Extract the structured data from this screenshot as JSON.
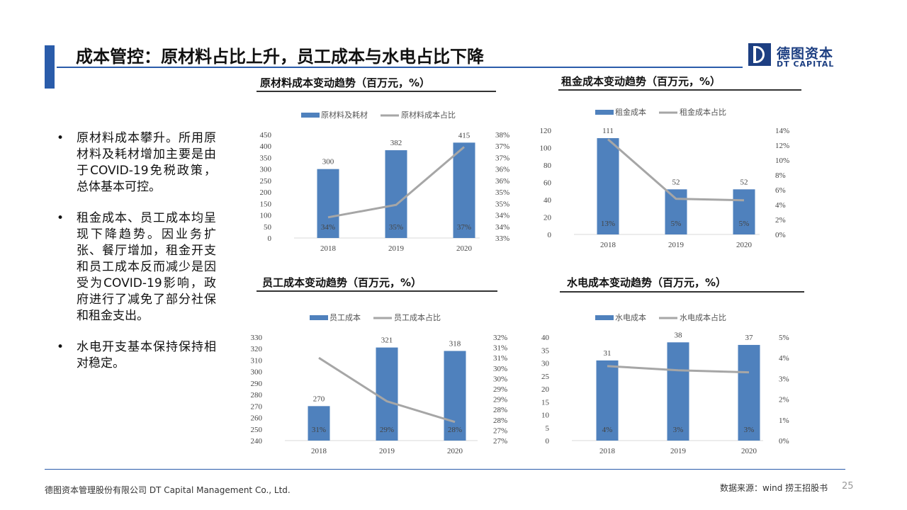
{
  "header": {
    "title": "成本管控：原材料占比上升，员工成本与水电占比下降"
  },
  "logo": {
    "name": "德图资本",
    "sub": "DT CAPITAL"
  },
  "bullets": [
    "原材料成本攀升。所用原材料及耗材增加主要是由于COVID-19免税政策，总体基本可控。",
    "租金成本、员工成本均呈现下降趋势。因业务扩张、餐厅增加，租金开支和员工成本反而减少是因受为COVID-19影响，政府进行了减免了部分社保和租金支出。",
    "水电开支基本保持保持相对稳定。"
  ],
  "footer": {
    "company": "德图资本管理股份有限公司  DT Capital Management Co., Ltd.",
    "source": "数据来源：wind  捞王招股书",
    "page": "25"
  },
  "colors": {
    "bar": "#4f81bd",
    "line": "#a6a6a6",
    "accent": "#2a5caa"
  },
  "chart_data": [
    {
      "type": "bar",
      "title": "原材料成本变动趋势（百万元，%）",
      "categories": [
        "2018",
        "2019",
        "2020"
      ],
      "series": [
        {
          "name": "原材料及耗材",
          "kind": "bar",
          "axis": "left",
          "values": [
            300,
            382,
            415
          ],
          "labels": [
            "300",
            "382",
            "415"
          ]
        },
        {
          "name": "原材料成本占比",
          "kind": "line",
          "axis": "right",
          "values": [
            34.0,
            34.6,
            37.4
          ],
          "labels": [
            "34%",
            "35%",
            "37%"
          ]
        }
      ],
      "left_axis": {
        "min": 0,
        "max": 450,
        "ticks": [
          "0",
          "50",
          "100",
          "150",
          "200",
          "250",
          "300",
          "350",
          "400",
          "450"
        ]
      },
      "right_axis": {
        "min": 33,
        "max": 38,
        "ticks": [
          "33%",
          "34%",
          "34%",
          "35%",
          "35%",
          "36%",
          "36%",
          "37%",
          "37%",
          "38%"
        ]
      },
      "legend": "top"
    },
    {
      "type": "bar",
      "title": "租金成本变动趋势（百万元，%）",
      "categories": [
        "2018",
        "2019",
        "2020"
      ],
      "series": [
        {
          "name": "租金成本",
          "kind": "bar",
          "axis": "left",
          "values": [
            111,
            52,
            52
          ],
          "labels": [
            "111",
            "52",
            "52"
          ]
        },
        {
          "name": "租金成本占比",
          "kind": "line",
          "axis": "right",
          "values": [
            12.8,
            4.8,
            4.6
          ],
          "labels": [
            "13%",
            "5%",
            "5%"
          ]
        }
      ],
      "left_axis": {
        "min": 0,
        "max": 120,
        "ticks": [
          "0",
          "20",
          "40",
          "60",
          "80",
          "100",
          "120"
        ]
      },
      "right_axis": {
        "min": 0,
        "max": 14,
        "ticks": [
          "0%",
          "2%",
          "4%",
          "6%",
          "8%",
          "10%",
          "12%",
          "14%"
        ]
      },
      "legend": "top"
    },
    {
      "type": "bar",
      "title": "员工成本变动趋势（百万元，%）",
      "categories": [
        "2018",
        "2019",
        "2020"
      ],
      "series": [
        {
          "name": "员工成本",
          "kind": "bar",
          "axis": "left",
          "values": [
            270,
            321,
            318
          ],
          "labels": [
            "270",
            "321",
            "318"
          ]
        },
        {
          "name": "员工成本占比",
          "kind": "line",
          "axis": "right",
          "values": [
            31.0,
            28.9,
            27.9
          ],
          "labels": [
            "31%",
            "29%",
            "28%"
          ]
        }
      ],
      "left_axis": {
        "min": 240,
        "max": 330,
        "ticks": [
          "240",
          "250",
          "260",
          "270",
          "280",
          "290",
          "300",
          "310",
          "320",
          "330"
        ]
      },
      "right_axis": {
        "min": 27,
        "max": 32,
        "ticks": [
          "27%",
          "27%",
          "28%",
          "28%",
          "29%",
          "29%",
          "30%",
          "30%",
          "31%",
          "31%",
          "32%"
        ]
      },
      "legend": "top"
    },
    {
      "type": "bar",
      "title": "水电成本变动趋势（百万元，%）",
      "categories": [
        "2018",
        "2019",
        "2020"
      ],
      "series": [
        {
          "name": "水电成本",
          "kind": "bar",
          "axis": "left",
          "values": [
            31,
            38,
            37
          ],
          "labels": [
            "31",
            "38",
            "37"
          ]
        },
        {
          "name": "水电成本占比",
          "kind": "line",
          "axis": "right",
          "values": [
            3.6,
            3.4,
            3.3
          ],
          "labels": [
            "4%",
            "3%",
            "3%"
          ]
        }
      ],
      "left_axis": {
        "min": 0,
        "max": 40,
        "ticks": [
          "0",
          "5",
          "10",
          "15",
          "20",
          "25",
          "30",
          "35",
          "40"
        ]
      },
      "right_axis": {
        "min": 0,
        "max": 5,
        "ticks": [
          "0%",
          "1%",
          "2%",
          "3%",
          "4%",
          "5%"
        ]
      },
      "legend": "top"
    }
  ]
}
